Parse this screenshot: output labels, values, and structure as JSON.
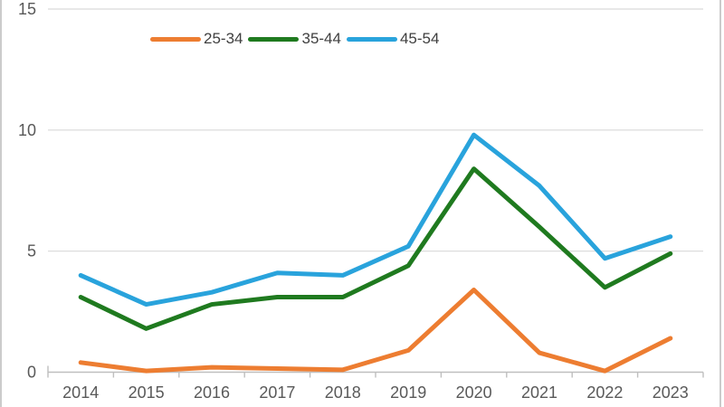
{
  "chart_data": {
    "type": "line",
    "title": "",
    "xlabel": "",
    "ylabel": "",
    "categories": [
      "2014",
      "2015",
      "2016",
      "2017",
      "2018",
      "2019",
      "2020",
      "2021",
      "2022",
      "2023"
    ],
    "series": [
      {
        "name": "25-34",
        "color": "#ED7D31",
        "values": [
          0.4,
          0.05,
          0.2,
          0.15,
          0.1,
          0.9,
          3.4,
          0.8,
          0.05,
          1.4
        ]
      },
      {
        "name": "35-44",
        "color": "#1F7A1F",
        "values": [
          3.1,
          1.8,
          2.8,
          3.1,
          3.1,
          4.4,
          8.4,
          6.0,
          3.5,
          4.9
        ]
      },
      {
        "name": "45-54",
        "color": "#29A3DC",
        "values": [
          4.0,
          2.8,
          3.3,
          4.1,
          4.0,
          5.2,
          9.8,
          7.7,
          4.7,
          5.6
        ]
      }
    ],
    "ylim": [
      0,
      15
    ],
    "yticks": [
      "0",
      "5",
      "10",
      "15"
    ],
    "grid": true,
    "legend_position": "top"
  },
  "colors": {
    "gridline": "#d9d9d9",
    "axis_line": "#bfbfbf",
    "tick": "#bfbfbf",
    "axis_label": "#595959",
    "legend_text": "#3f3f3f",
    "edge_border": "#cbcbcb",
    "background": "#ffffff"
  }
}
